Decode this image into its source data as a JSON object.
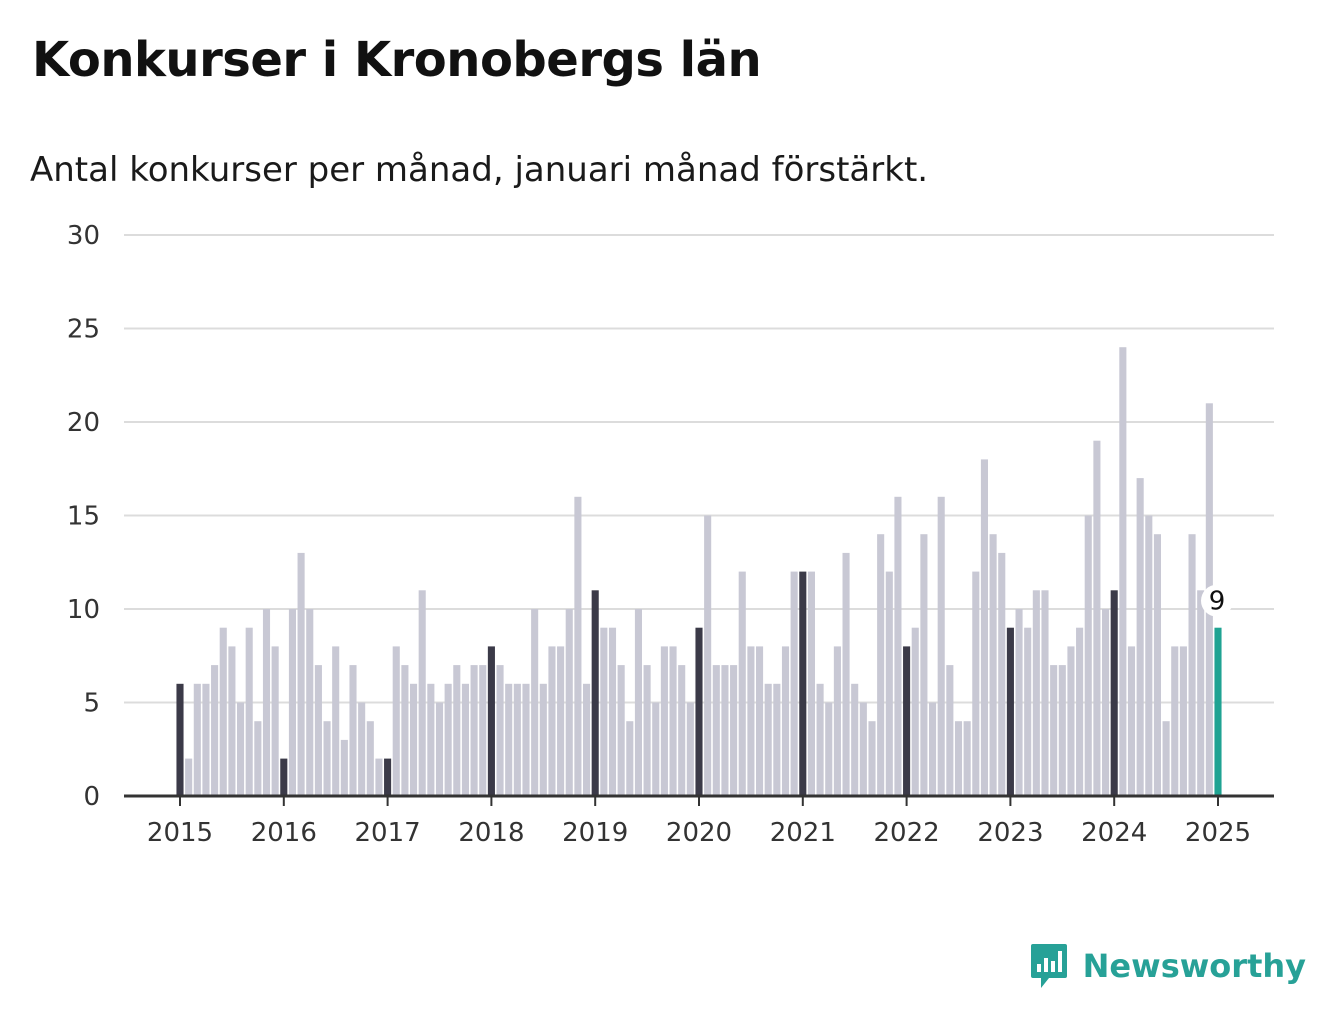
{
  "title": "Konkurser i Kronobergs län",
  "subtitle": "Antal konkurser per månad, januari månad förstärkt.",
  "brand": "Newsworthy",
  "colors": {
    "regular": "#c8c8d4",
    "january": "#3b3a48",
    "latest": "#1fa392",
    "grid": "#dcdcdc",
    "axis": "#333333",
    "brand": "#27a197"
  },
  "icons": {
    "logo": "bar-chart-speech-bubble-icon"
  },
  "chart_data": {
    "type": "bar",
    "title": "Konkurser i Kronobergs län",
    "subtitle": "Antal konkurser per månad, januari månad förstärkt.",
    "xlabel": "",
    "ylabel": "",
    "ylim": [
      0,
      30
    ],
    "yticks": [
      0,
      5,
      10,
      15,
      20,
      25,
      30
    ],
    "xticks": [
      "2015",
      "2016",
      "2017",
      "2018",
      "2019",
      "2020",
      "2021",
      "2022",
      "2023",
      "2024",
      "2025"
    ],
    "grid": true,
    "start": "2015-01",
    "end": "2025-01",
    "highlight": "january",
    "annotation": {
      "period": "2025-01",
      "text": "9"
    },
    "values": [
      6,
      2,
      6,
      6,
      7,
      9,
      8,
      5,
      9,
      4,
      10,
      8,
      2,
      10,
      13,
      10,
      7,
      4,
      8,
      3,
      7,
      5,
      4,
      2,
      2,
      8,
      7,
      6,
      11,
      6,
      5,
      6,
      7,
      6,
      7,
      7,
      8,
      7,
      6,
      6,
      6,
      10,
      6,
      8,
      8,
      10,
      16,
      6,
      11,
      9,
      9,
      7,
      4,
      10,
      7,
      5,
      8,
      8,
      7,
      5,
      9,
      15,
      7,
      7,
      7,
      12,
      8,
      8,
      6,
      6,
      8,
      12,
      12,
      12,
      6,
      5,
      8,
      13,
      6,
      5,
      4,
      14,
      12,
      16,
      8,
      9,
      14,
      5,
      16,
      7,
      4,
      4,
      12,
      18,
      14,
      13,
      9,
      10,
      9,
      11,
      11,
      7,
      7,
      8,
      9,
      15,
      19,
      10,
      11,
      24,
      8,
      17,
      15,
      14,
      4,
      8,
      8,
      14,
      11,
      21,
      9
    ]
  }
}
